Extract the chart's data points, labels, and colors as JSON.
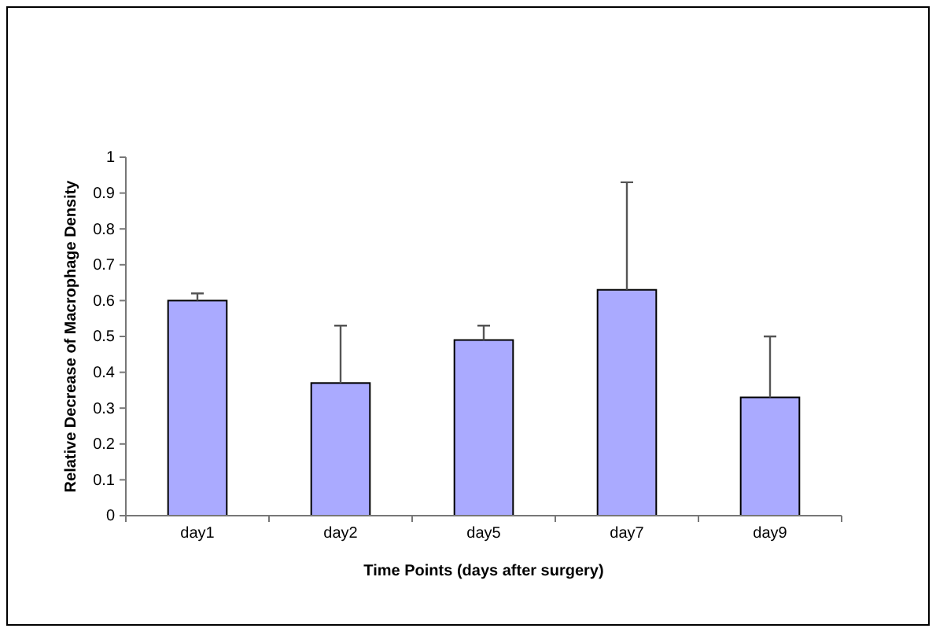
{
  "chart_data": {
    "type": "bar",
    "xlabel": "Time Points (days after surgery)",
    "ylabel": "Relative Decrease of Macrophage Density",
    "categories": [
      "day1",
      "day2",
      "day5",
      "day7",
      "day9"
    ],
    "values": [
      0.6,
      0.37,
      0.49,
      0.63,
      0.33
    ],
    "errors": [
      [
        0.6,
        0.62
      ],
      [
        0.37,
        0.53
      ],
      [
        0.49,
        0.53
      ],
      [
        0.63,
        0.93
      ],
      [
        0.33,
        0.5
      ]
    ],
    "color": "#aaaaff",
    "ylim": [
      0,
      1
    ],
    "yticks": [
      0,
      0.1,
      0.2,
      0.3,
      0.4,
      0.5,
      0.6,
      0.7,
      0.8,
      0.9,
      1
    ],
    "grid": false
  }
}
